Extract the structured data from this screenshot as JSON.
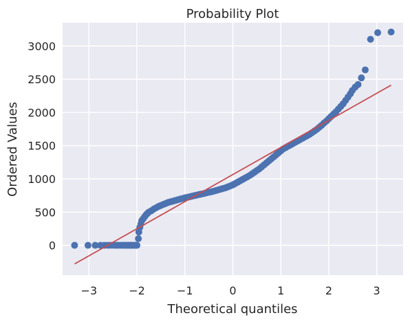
{
  "chart_data": {
    "type": "scatter",
    "title": "Probability Plot",
    "xlabel": "Theoretical quantiles",
    "ylabel": "Ordered Values",
    "xlim": [
      -3.55,
      3.55
    ],
    "ylim": [
      -450,
      3350
    ],
    "xticks": [
      -3,
      -2,
      -1,
      0,
      1,
      2,
      3
    ],
    "xtick_labels": [
      "−3",
      "−2",
      "−1",
      "0",
      "1",
      "2",
      "3"
    ],
    "yticks": [
      0,
      500,
      1000,
      1500,
      2000,
      2500,
      3000
    ],
    "ytick_labels": [
      "0",
      "500",
      "1000",
      "1500",
      "2000",
      "2500",
      "3000"
    ],
    "grid": true,
    "colors": {
      "background": "#eaeaf2",
      "grid": "#ffffff",
      "points": "#4c72b0",
      "fit_line": "#c44e52"
    },
    "series": [
      {
        "kind": "points",
        "points": [
          [
            -3.3,
            0
          ],
          [
            -3.02,
            0
          ],
          [
            -2.87,
            0
          ],
          [
            -2.76,
            0
          ],
          [
            -2.68,
            0
          ],
          [
            -2.61,
            0
          ],
          [
            -2.55,
            0
          ],
          [
            -2.49,
            0
          ],
          [
            -2.44,
            0
          ],
          [
            -2.4,
            0
          ],
          [
            -2.35,
            0
          ],
          [
            -2.31,
            0
          ],
          [
            -2.27,
            0
          ],
          [
            -2.24,
            0
          ],
          [
            -2.2,
            0
          ],
          [
            -2.17,
            0
          ],
          [
            -2.14,
            0
          ],
          [
            -2.11,
            0
          ],
          [
            -2.08,
            0
          ],
          [
            -2.05,
            0
          ],
          [
            -2.02,
            0
          ],
          [
            -2.0,
            0
          ],
          [
            -1.97,
            100
          ],
          [
            -1.96,
            200
          ],
          [
            -1.94,
            270
          ],
          [
            -1.92,
            320
          ],
          [
            -1.9,
            370
          ],
          [
            -1.87,
            400
          ],
          [
            -1.84,
            430
          ],
          [
            -1.81,
            460
          ],
          [
            -1.78,
            480
          ],
          [
            -1.75,
            500
          ],
          [
            -1.7,
            520
          ],
          [
            -1.65,
            545
          ],
          [
            -1.6,
            565
          ],
          [
            -1.55,
            585
          ],
          [
            -1.5,
            600
          ],
          [
            -1.45,
            615
          ],
          [
            -1.4,
            630
          ],
          [
            -1.35,
            645
          ],
          [
            -1.3,
            655
          ],
          [
            -1.25,
            665
          ],
          [
            -1.2,
            675
          ],
          [
            -1.15,
            685
          ],
          [
            -1.1,
            695
          ],
          [
            -1.05,
            705
          ],
          [
            -1.0,
            715
          ],
          [
            -0.95,
            722
          ],
          [
            -0.9,
            730
          ],
          [
            -0.85,
            740
          ],
          [
            -0.8,
            748
          ],
          [
            -0.75,
            756
          ],
          [
            -0.7,
            765
          ],
          [
            -0.65,
            772
          ],
          [
            -0.6,
            780
          ],
          [
            -0.55,
            790
          ],
          [
            -0.5,
            798
          ],
          [
            -0.45,
            806
          ],
          [
            -0.4,
            815
          ],
          [
            -0.35,
            825
          ],
          [
            -0.3,
            835
          ],
          [
            -0.25,
            845
          ],
          [
            -0.2,
            856
          ],
          [
            -0.15,
            866
          ],
          [
            -0.1,
            880
          ],
          [
            -0.05,
            895
          ],
          [
            0.0,
            910
          ],
          [
            0.05,
            930
          ],
          [
            0.1,
            950
          ],
          [
            0.15,
            970
          ],
          [
            0.2,
            990
          ],
          [
            0.25,
            1010
          ],
          [
            0.3,
            1030
          ],
          [
            0.35,
            1050
          ],
          [
            0.4,
            1075
          ],
          [
            0.45,
            1100
          ],
          [
            0.5,
            1125
          ],
          [
            0.55,
            1150
          ],
          [
            0.6,
            1180
          ],
          [
            0.65,
            1210
          ],
          [
            0.7,
            1240
          ],
          [
            0.75,
            1270
          ],
          [
            0.8,
            1300
          ],
          [
            0.85,
            1330
          ],
          [
            0.9,
            1360
          ],
          [
            0.95,
            1390
          ],
          [
            1.0,
            1420
          ],
          [
            1.05,
            1450
          ],
          [
            1.1,
            1470
          ],
          [
            1.15,
            1490
          ],
          [
            1.2,
            1510
          ],
          [
            1.25,
            1530
          ],
          [
            1.3,
            1550
          ],
          [
            1.35,
            1570
          ],
          [
            1.4,
            1590
          ],
          [
            1.45,
            1610
          ],
          [
            1.5,
            1630
          ],
          [
            1.55,
            1650
          ],
          [
            1.6,
            1670
          ],
          [
            1.65,
            1695
          ],
          [
            1.7,
            1720
          ],
          [
            1.75,
            1745
          ],
          [
            1.8,
            1775
          ],
          [
            1.85,
            1805
          ],
          [
            1.9,
            1840
          ],
          [
            1.95,
            1870
          ],
          [
            2.0,
            1905
          ],
          [
            2.05,
            1940
          ],
          [
            2.1,
            1975
          ],
          [
            2.15,
            2010
          ],
          [
            2.2,
            2050
          ],
          [
            2.25,
            2090
          ],
          [
            2.3,
            2130
          ],
          [
            2.35,
            2180
          ],
          [
            2.4,
            2230
          ],
          [
            2.45,
            2280
          ],
          [
            2.49,
            2330
          ],
          [
            2.55,
            2380
          ],
          [
            2.61,
            2420
          ],
          [
            2.68,
            2520
          ],
          [
            2.76,
            2640
          ],
          [
            2.87,
            3100
          ],
          [
            3.02,
            3200
          ],
          [
            3.3,
            3210
          ]
        ]
      },
      {
        "kind": "line",
        "points": [
          [
            -3.3,
            -280
          ],
          [
            3.3,
            2410
          ]
        ]
      }
    ]
  }
}
